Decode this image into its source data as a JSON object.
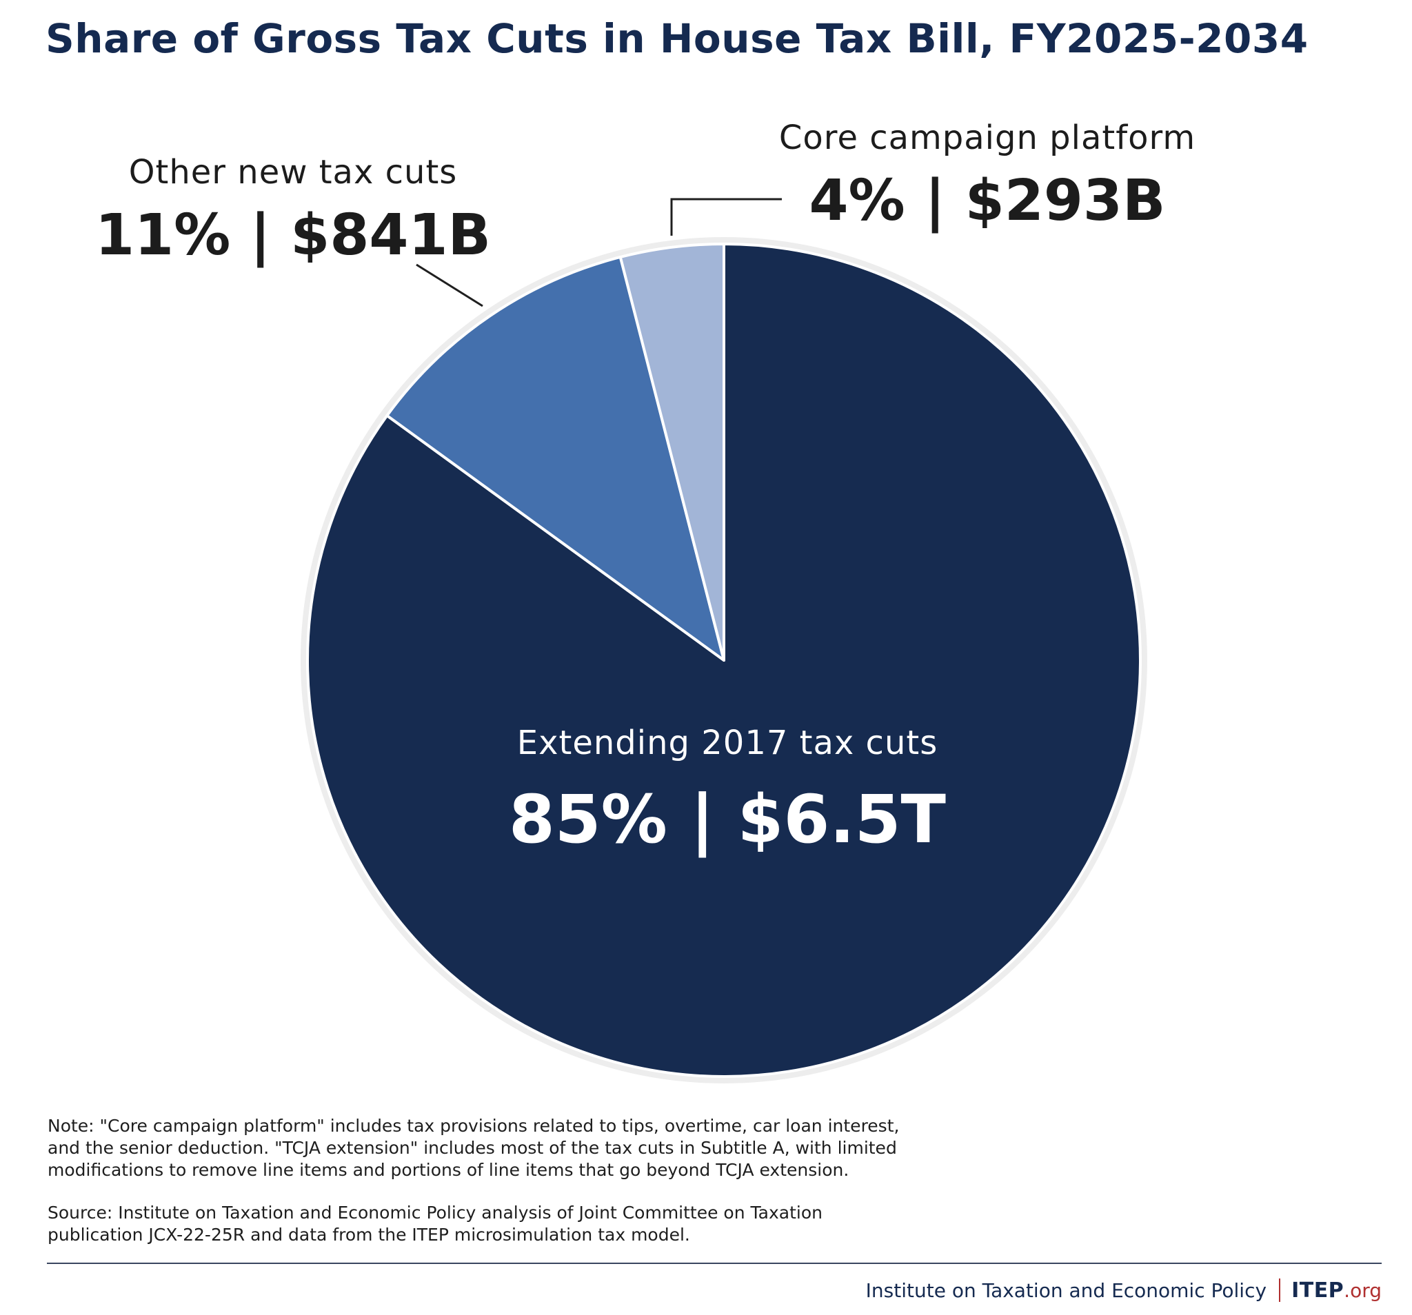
{
  "chart_data": {
    "type": "pie",
    "title": "Share of Gross Tax Cuts in House Tax Bill, FY2025-2034",
    "start_angle_deg": 0,
    "direction": "clockwise",
    "slices": [
      {
        "key": "extending",
        "name": "Extending 2017 tax cuts",
        "percent": 85,
        "amount": "$6.5T",
        "value_label": "85% | $6.5T",
        "color": "#162b50",
        "label_color": "#ffffff"
      },
      {
        "key": "other",
        "name": "Other new tax cuts",
        "percent": 11,
        "amount": "$841B",
        "value_label": "11% | $841B",
        "color": "#4470ad",
        "label_color": "#1c1c1c"
      },
      {
        "key": "core",
        "name": "Core campaign platform",
        "percent": 4,
        "amount": "$293B",
        "value_label": "4% | $293B",
        "color": "#a2b5d7",
        "label_color": "#1c1c1c"
      }
    ],
    "outline_color": "#ededed"
  },
  "notes": {
    "note": "Note: \"Core campaign platform\" includes tax provisions related to tips, overtime, car loan interest,\nand the senior deduction. \"TCJA extension\" includes most of the tax cuts in Subtitle A, with limited\nmodifications to remove line items and portions of line items that go beyond TCJA extension.",
    "source": "Source: Institute on Taxation and Economic Policy analysis of Joint Committee on Taxation\npublication JCX-22-25R and data from the ITEP microsimulation tax model."
  },
  "footer": {
    "organization": "Institute on Taxation and Economic Policy",
    "logo_main": "ITEP",
    "logo_suffix": ".org"
  }
}
